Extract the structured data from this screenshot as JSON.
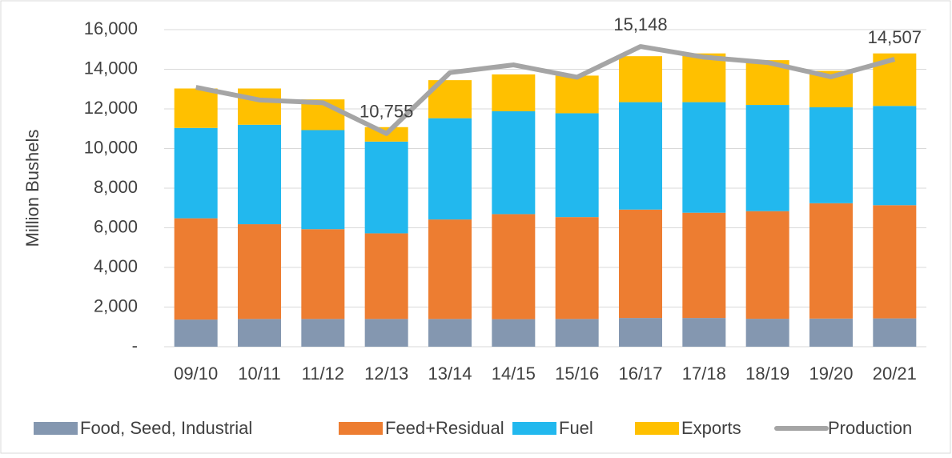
{
  "chart_data": {
    "type": "bar",
    "stacked": true,
    "ylabel": "Million Bushels",
    "categories": [
      "09/10",
      "10/11",
      "11/12",
      "12/13",
      "13/14",
      "14/15",
      "15/16",
      "16/17",
      "17/18",
      "18/19",
      "19/20",
      "20/21"
    ],
    "series": [
      {
        "name": "Food, Seed, Industrial",
        "color": "#8497b0",
        "values": [
          1370,
          1400,
          1400,
          1400,
          1400,
          1390,
          1400,
          1450,
          1450,
          1410,
          1420,
          1430
        ]
      },
      {
        "name": "Feed+Residual",
        "color": "#ed7d31",
        "values": [
          5110,
          4780,
          4530,
          4320,
          5020,
          5300,
          5140,
          5470,
          5310,
          5430,
          5820,
          5710
        ]
      },
      {
        "name": "Fuel",
        "color": "#22b8ee",
        "values": [
          4560,
          5020,
          5000,
          4630,
          5110,
          5190,
          5240,
          5420,
          5580,
          5360,
          4840,
          5010
        ]
      },
      {
        "name": "Exports",
        "color": "#ffc000",
        "values": [
          1990,
          1830,
          1550,
          730,
          1920,
          1860,
          1900,
          2320,
          2460,
          2260,
          1840,
          2650
        ]
      },
      {
        "name": "Production",
        "type": "line",
        "color": "#a5a5a5",
        "values": [
          13090,
          12450,
          12310,
          10755,
          13830,
          14220,
          13600,
          15148,
          14610,
          14340,
          13620,
          14507
        ],
        "value_labels": [
          null,
          null,
          null,
          "10,755",
          null,
          null,
          null,
          "15,148",
          null,
          null,
          null,
          "14,507"
        ]
      }
    ],
    "ylim": [
      0,
      16000
    ],
    "yticks": [
      {
        "value": 0,
        "label": "-"
      },
      {
        "value": 2000,
        "label": "2,000"
      },
      {
        "value": 4000,
        "label": "4,000"
      },
      {
        "value": 6000,
        "label": "6,000"
      },
      {
        "value": 8000,
        "label": "8,000"
      },
      {
        "value": 10000,
        "label": "10,000"
      },
      {
        "value": 12000,
        "label": "12,000"
      },
      {
        "value": 14000,
        "label": "14,000"
      },
      {
        "value": 16000,
        "label": "16,000"
      }
    ],
    "grid": true,
    "legend": "bottom"
  }
}
